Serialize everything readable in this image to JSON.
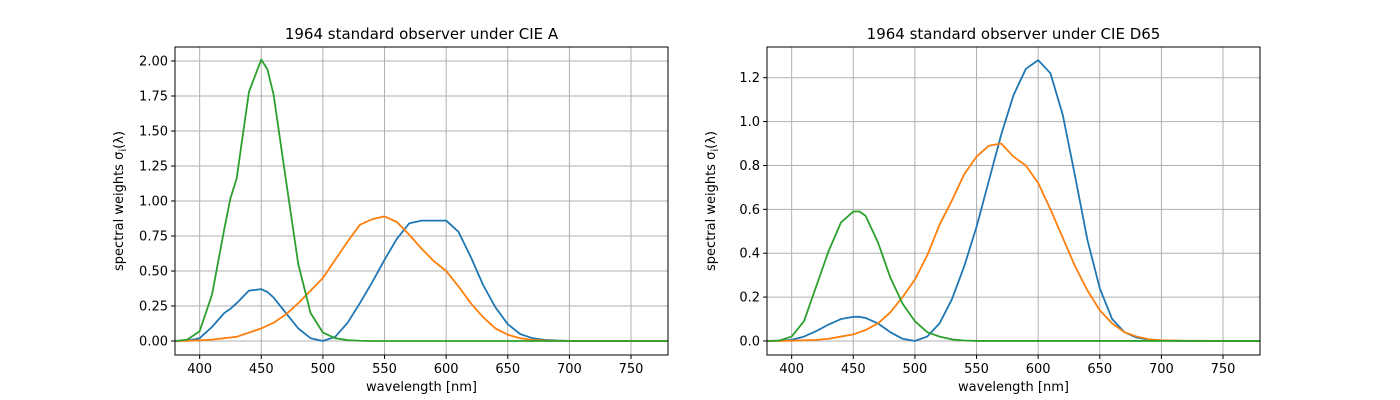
{
  "chart_data": [
    {
      "type": "line",
      "title": "1964 standard observer under CIE A",
      "xlabel": "wavelength [nm]",
      "ylabel_text": "spectral weights σ",
      "ylabel_suffix": "(λ)",
      "ylabel_sub": "i",
      "xlim": [
        380,
        780
      ],
      "ylim": [
        -0.1,
        2.1
      ],
      "xticks": [
        400,
        450,
        500,
        550,
        600,
        650,
        700,
        750
      ],
      "xtick_labels": [
        "400",
        "450",
        "500",
        "550",
        "600",
        "650",
        "700",
        "750"
      ],
      "yticks": [
        0,
        0.25,
        0.5,
        0.75,
        1.0,
        1.25,
        1.5,
        1.75,
        2.0
      ],
      "ytick_labels": [
        "0.00",
        "0.25",
        "0.50",
        "0.75",
        "1.00",
        "1.25",
        "1.50",
        "1.75",
        "2.00"
      ],
      "grid": true,
      "x": [
        380,
        390,
        400,
        410,
        420,
        425,
        430,
        440,
        450,
        455,
        460,
        470,
        480,
        490,
        500,
        510,
        520,
        530,
        540,
        550,
        560,
        570,
        580,
        590,
        600,
        610,
        620,
        630,
        640,
        650,
        660,
        670,
        680,
        690,
        700,
        720,
        750,
        780
      ],
      "series": [
        {
          "color": "#1f77b4",
          "values": [
            0.0,
            0.003,
            0.02,
            0.1,
            0.2,
            0.23,
            0.27,
            0.36,
            0.37,
            0.35,
            0.31,
            0.2,
            0.09,
            0.02,
            0.0,
            0.03,
            0.13,
            0.27,
            0.42,
            0.58,
            0.73,
            0.84,
            0.86,
            0.86,
            0.86,
            0.78,
            0.6,
            0.4,
            0.24,
            0.12,
            0.05,
            0.02,
            0.008,
            0.003,
            0.001,
            0.0,
            0.0,
            0.0
          ]
        },
        {
          "color": "#ff7f0e",
          "values": [
            0.0,
            0.001,
            0.005,
            0.01,
            0.02,
            0.025,
            0.03,
            0.06,
            0.09,
            0.11,
            0.13,
            0.19,
            0.27,
            0.36,
            0.45,
            0.58,
            0.71,
            0.83,
            0.87,
            0.89,
            0.85,
            0.76,
            0.66,
            0.57,
            0.5,
            0.39,
            0.27,
            0.17,
            0.09,
            0.045,
            0.02,
            0.008,
            0.003,
            0.001,
            0.0,
            0.0,
            0.0,
            0.0
          ]
        },
        {
          "color": "#2ca02c",
          "values": [
            0.0,
            0.01,
            0.07,
            0.33,
            0.8,
            1.02,
            1.16,
            1.78,
            2.01,
            1.94,
            1.76,
            1.15,
            0.55,
            0.2,
            0.06,
            0.02,
            0.006,
            0.002,
            0.0,
            0.0,
            0.0,
            0.0,
            0.0,
            0.0,
            0.0,
            0.0,
            0.0,
            0.0,
            0.0,
            0.0,
            0.0,
            0.0,
            0.0,
            0.0,
            0.0,
            0.0,
            0.0,
            0.0
          ]
        }
      ]
    },
    {
      "type": "line",
      "title": "1964 standard observer under CIE D65",
      "xlabel": "wavelength [nm]",
      "ylabel_text": "spectral weights σ",
      "ylabel_suffix": "(λ)",
      "ylabel_sub": "i",
      "xlim": [
        380,
        780
      ],
      "ylim": [
        -0.064,
        1.34
      ],
      "xticks": [
        400,
        450,
        500,
        550,
        600,
        650,
        700,
        750
      ],
      "xtick_labels": [
        "400",
        "450",
        "500",
        "550",
        "600",
        "650",
        "700",
        "750"
      ],
      "yticks": [
        0,
        0.2,
        0.4,
        0.6,
        0.8,
        1.0,
        1.2
      ],
      "ytick_labels": [
        "0.0",
        "0.2",
        "0.4",
        "0.6",
        "0.8",
        "1.0",
        "1.2"
      ],
      "grid": true,
      "x": [
        380,
        390,
        400,
        410,
        420,
        430,
        440,
        450,
        455,
        460,
        470,
        480,
        490,
        500,
        510,
        520,
        530,
        540,
        550,
        560,
        570,
        580,
        590,
        600,
        610,
        620,
        630,
        640,
        650,
        660,
        670,
        680,
        690,
        700,
        720,
        750,
        780
      ],
      "series": [
        {
          "color": "#1f77b4",
          "values": [
            0.0,
            0.001,
            0.005,
            0.02,
            0.045,
            0.075,
            0.1,
            0.11,
            0.11,
            0.105,
            0.08,
            0.04,
            0.01,
            0.0,
            0.02,
            0.08,
            0.19,
            0.34,
            0.52,
            0.73,
            0.94,
            1.12,
            1.24,
            1.28,
            1.22,
            1.03,
            0.75,
            0.46,
            0.24,
            0.1,
            0.04,
            0.015,
            0.006,
            0.002,
            0.0,
            0.0,
            0.0
          ]
        },
        {
          "color": "#ff7f0e",
          "values": [
            0.0,
            0.0,
            0.001,
            0.003,
            0.005,
            0.01,
            0.02,
            0.03,
            0.04,
            0.05,
            0.08,
            0.13,
            0.2,
            0.28,
            0.39,
            0.53,
            0.64,
            0.76,
            0.84,
            0.89,
            0.9,
            0.84,
            0.8,
            0.72,
            0.6,
            0.47,
            0.34,
            0.23,
            0.14,
            0.08,
            0.04,
            0.02,
            0.008,
            0.003,
            0.001,
            0.0,
            0.0
          ]
        },
        {
          "color": "#2ca02c",
          "values": [
            0.0,
            0.002,
            0.02,
            0.09,
            0.25,
            0.41,
            0.54,
            0.59,
            0.59,
            0.57,
            0.45,
            0.29,
            0.17,
            0.09,
            0.04,
            0.02,
            0.007,
            0.002,
            0.0,
            0.0,
            0.0,
            0.0,
            0.0,
            0.0,
            0.0,
            0.0,
            0.0,
            0.0,
            0.0,
            0.0,
            0.0,
            0.0,
            0.0,
            0.0,
            0.0,
            0.0,
            0.0
          ]
        }
      ]
    }
  ]
}
